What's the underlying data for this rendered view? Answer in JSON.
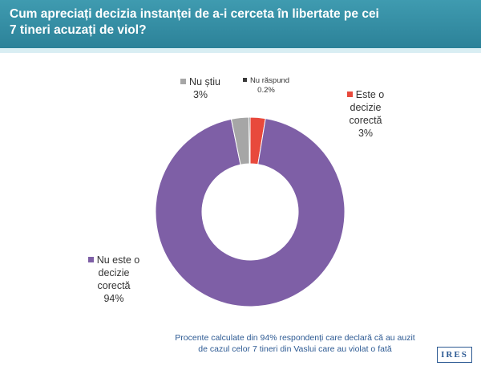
{
  "title": "Cum apreciați decizia instanței de a-i cerceta în libertate pe cei 7 tineri acuzați de viol?",
  "chart_data": {
    "type": "pie",
    "donut": true,
    "slices": [
      {
        "name": "Este o decizie corectă",
        "label_lines": [
          "Este o",
          "decizie",
          "corectă"
        ],
        "value_label": "3%",
        "value": 2.6,
        "color": "#e8493c"
      },
      {
        "name": "Nu este o decizie corectă",
        "label_lines": [
          "Nu este o",
          "decizie",
          "corectă"
        ],
        "value_label": "94%",
        "value": 94.2,
        "color": "#7e5fa6"
      },
      {
        "name": "Nu știu",
        "label_lines": [
          "Nu știu"
        ],
        "value_label": "3%",
        "value": 3.0,
        "color": "#a6a6a6"
      },
      {
        "name": "Nu răspund",
        "label_lines": [
          "Nu răspund"
        ],
        "value_label": "0.2%",
        "value": 0.2,
        "color": "#3a3a3a"
      }
    ]
  },
  "note": {
    "line1": "Procente calculate din 94% respondenți care declară că au auzit",
    "line2": "de cazul celor 7 tineri din Vaslui care au violat o fată"
  },
  "logo": "IRES"
}
